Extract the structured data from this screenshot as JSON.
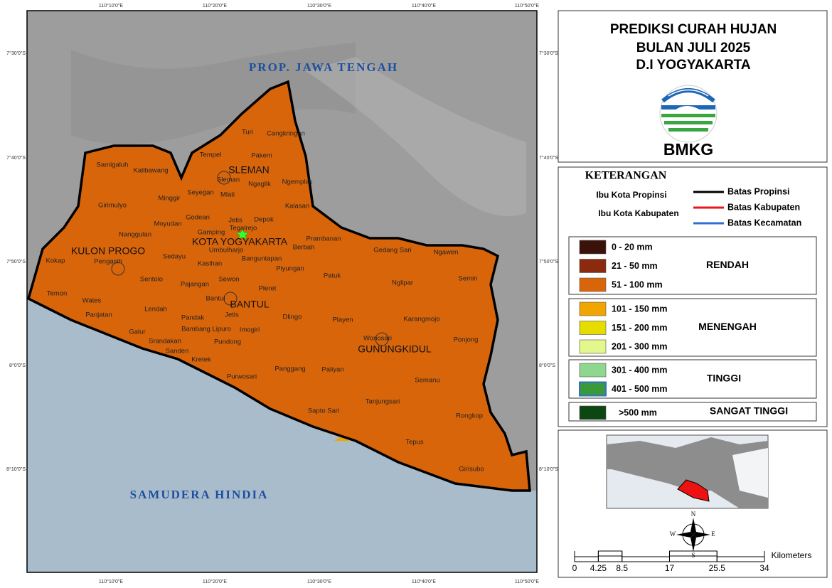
{
  "title": [
    "PREDIKSI CURAH HUJAN",
    "BULAN JULI 2025",
    "D.I YOGYAKARTA"
  ],
  "logo_text": "BMKG",
  "map": {
    "lon_labels": [
      "110°10'0\"E",
      "110°20'0\"E",
      "110°30'0\"E",
      "110°40'0\"E",
      "110°50'0\"E"
    ],
    "lat_labels": [
      "7°30'0\"S",
      "7°40'0\"S",
      "7°50'0\"S",
      "8°0'0\"S",
      "8°10'0\"S"
    ],
    "water_labels": [
      "PROP. JAWA TENGAH",
      "SAMUDERA HINDIA"
    ],
    "regency_labels": [
      "SLEMAN",
      "KOTA YOGYAKARTA",
      "KULON PROGO",
      "BANTUL",
      "GUNUNGKIDUL"
    ],
    "district_labels": [
      "Turi",
      "Cangkringan",
      "Tempel",
      "Pakem",
      "Samigaluh",
      "Kalibawang",
      "Sleman",
      "Ngaglik",
      "Ngemplak",
      "Seyegan",
      "Mlati",
      "Minggir",
      "Girimulyo",
      "Kalasan",
      "Godean",
      "Jetis",
      "Depok",
      "Moyudan",
      "Nanggulan",
      "Gamping",
      "Tegalrejo",
      "Prambanan",
      "Berbah",
      "Gedang Sari",
      "Ngawen",
      "Umbulharjo",
      "Sedayu",
      "Pengasih",
      "Kokap",
      "Kasihan",
      "Banguntapan",
      "Piyungan",
      "Patuk",
      "Semin",
      "Sentolo",
      "Sewon",
      "Pajangan",
      "Nglipar",
      "Pleret",
      "Temon",
      "Wates",
      "Bantul",
      "Lendah",
      "Panjatan",
      "Pandak",
      "Jetis",
      "Dlingo",
      "Playen",
      "Karangmojo",
      "Bambang Lipuro",
      "Imogiri",
      "Galur",
      "Srandakan",
      "Ponjong",
      "Wonosari",
      "Pundong",
      "Sanden",
      "Kretek",
      "Panggang",
      "Paliyan",
      "Purwosari",
      "Semanu",
      "Tanjungsari",
      "Sapto Sari",
      "Rongkop",
      "Tepus",
      "Girisubo"
    ]
  },
  "legend": {
    "heading": "KETERANGAN",
    "symbols": [
      "Ibu Kota Propinsi",
      "Ibu Kota Kabupaten"
    ],
    "lines": [
      {
        "label": "Batas Propinsi",
        "color": "#000000"
      },
      {
        "label": "Batas Kabupaten",
        "color": "#e8161b"
      },
      {
        "label": "Batas Kecamatan",
        "color": "#2f6fd0"
      }
    ],
    "classes": [
      {
        "label": "0 - 20 mm",
        "color": "#3a1209"
      },
      {
        "label": "21 - 50 mm",
        "color": "#8b2a0c"
      },
      {
        "label": "51 - 100 mm",
        "color": "#d9650a"
      },
      {
        "label": "101 - 150 mm",
        "color": "#f0a500"
      },
      {
        "label": "151 - 200 mm",
        "color": "#e6dc00"
      },
      {
        "label": "201 - 300 mm",
        "color": "#e2f78c"
      },
      {
        "label": "301 - 400 mm",
        "color": "#8fd690"
      },
      {
        "label": "401 - 500 mm",
        "color": "#3a9a3a"
      },
      {
        "label": ">500 mm",
        "color": "#0c4612"
      }
    ],
    "groups": [
      "RENDAH",
      "MENENGAH",
      "TINGGI",
      "SANGAT TINGGI"
    ]
  },
  "compass": [
    "N",
    "E",
    "S",
    "W"
  ],
  "scale": {
    "unit": "Kilometers",
    "ticks": [
      0,
      4.25,
      8.5,
      17,
      25.5,
      34
    ]
  }
}
